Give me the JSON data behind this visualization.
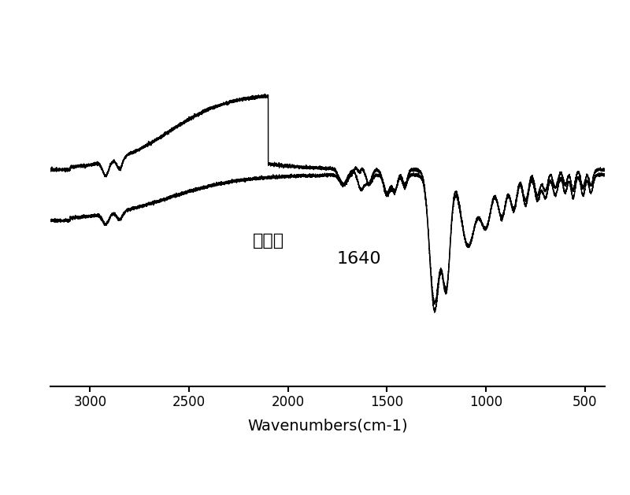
{
  "xlabel": "Wavenumbers(cm-1)",
  "xlabel_fontsize": 14,
  "xticks": [
    3000,
    2500,
    2000,
    1500,
    1000,
    500
  ],
  "xticklabels": [
    "3000",
    "2500",
    "2000",
    "1500",
    "1000",
    "500"
  ],
  "annotation_jiaolianlhou": "交联后",
  "annotation_1640_text": "1640",
  "background_color": "#ffffff",
  "line_color": "#000000",
  "figsize": [
    8.0,
    6.29
  ],
  "dpi": 100
}
